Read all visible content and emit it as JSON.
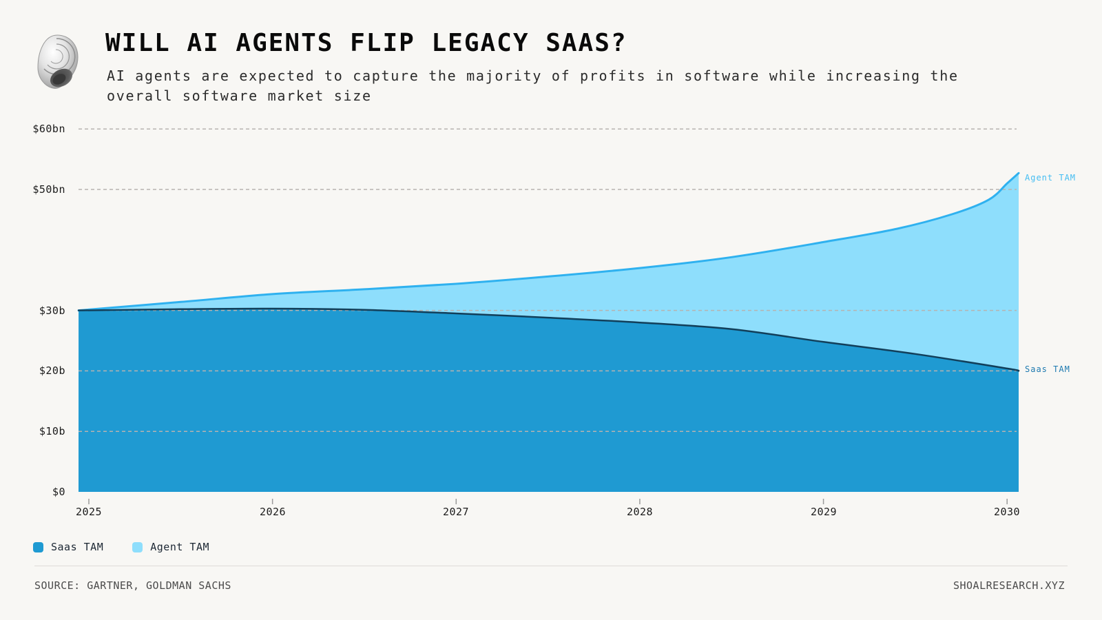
{
  "header": {
    "title": "WILL AI AGENTS FLIP LEGACY SAAS?",
    "subtitle": "AI agents are expected to capture the majority of profits in software while increasing the overall software market size",
    "logo": "shell-logo"
  },
  "chart_data": {
    "type": "area",
    "title": "WILL AI AGENTS FLIP LEGACY SAAS?",
    "ylim": [
      0,
      60
    ],
    "x_ticks": [
      2025,
      2026,
      2027,
      2028,
      2029,
      2030
    ],
    "y_ticks": [
      {
        "label": "$60bn",
        "value": 60,
        "gridline": true
      },
      {
        "label": "$50bn",
        "value": 50,
        "gridline": true
      },
      {
        "label": "$30b",
        "value": 30,
        "gridline": true
      },
      {
        "label": "$20b",
        "value": 20,
        "gridline": true
      },
      {
        "label": "$10b",
        "value": 10,
        "gridline": true
      },
      {
        "label": "$0",
        "value": 0,
        "gridline": false
      }
    ],
    "grid": "dashed horizontal",
    "legend_position": "bottom-left",
    "series": [
      {
        "name": "Saas TAM",
        "values_by_year": {
          "2025": 30,
          "2026": 30.3,
          "2027": 29.5,
          "2028": 28,
          "2029": 24.8,
          "2030": 20.4
        },
        "end_value": 20,
        "samples": [
          [
            2024.944,
            30.0
          ],
          [
            2025.5,
            30.2
          ],
          [
            2026,
            30.3
          ],
          [
            2026.5,
            30.1
          ],
          [
            2027,
            29.5
          ],
          [
            2027.5,
            28.8
          ],
          [
            2028,
            28.0
          ],
          [
            2028.5,
            26.9
          ],
          [
            2029,
            24.8
          ],
          [
            2029.5,
            22.8
          ],
          [
            2030,
            20.4
          ],
          [
            2030.063,
            20.0
          ]
        ],
        "fill": "#1f9ad2",
        "stroke": "#123f5a"
      },
      {
        "name": "Agent TAM",
        "values_by_year": {
          "2025": 30,
          "2026": 32.7,
          "2027": 34.4,
          "2028": 37,
          "2029": 41.3,
          "2030": 51
        },
        "end_value": 52.7,
        "samples": [
          [
            2024.944,
            30.0
          ],
          [
            2025.5,
            31.4
          ],
          [
            2026,
            32.7
          ],
          [
            2026.5,
            33.5
          ],
          [
            2027,
            34.4
          ],
          [
            2027.5,
            35.6
          ],
          [
            2028,
            37.0
          ],
          [
            2028.5,
            38.8
          ],
          [
            2029,
            41.3
          ],
          [
            2029.4,
            43.5
          ],
          [
            2029.7,
            45.9
          ],
          [
            2029.9,
            48.3
          ],
          [
            2030,
            51.0
          ],
          [
            2030.063,
            52.7
          ]
        ],
        "fill": "#8edefc",
        "stroke": "#2fb1ef"
      }
    ],
    "end_labels": [
      {
        "text": "Agent TAM",
        "color": "#45bdf2"
      },
      {
        "text": "Saas TAM",
        "color": "#1e7ab0"
      }
    ],
    "colors": {
      "gridline": "#b7b3b0",
      "tick": "#9a9a9a"
    }
  },
  "legend": {
    "items": [
      {
        "label": "Saas TAM",
        "color": "#1f9ad2"
      },
      {
        "label": "Agent TAM",
        "color": "#8edefc"
      }
    ]
  },
  "footer": {
    "source": "SOURCE: GARTNER, GOLDMAN SACHS",
    "brand": "SHOALRESEARCH.XYZ"
  }
}
